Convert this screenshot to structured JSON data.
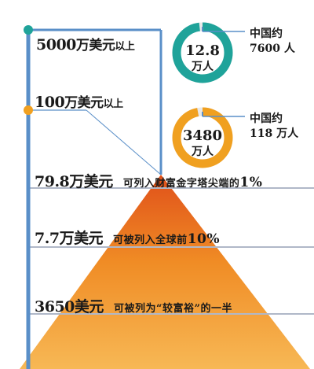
{
  "tiers": [
    {
      "value": "5000",
      "unit": "万美元",
      "suffix": "以上"
    },
    {
      "value": "100",
      "unit": "万美元",
      "suffix": "以上"
    },
    {
      "value": "79.8",
      "unit": "万美元",
      "note": "可列入财富金字塔尖端的",
      "note_value": "1%"
    },
    {
      "value": "7.7",
      "unit": "万美元",
      "note": "可被列入全球前",
      "note_value": "10%"
    },
    {
      "value": "3650",
      "unit": "美元",
      "note": "可被列为“较富裕”的一半",
      "note_value": ""
    }
  ],
  "rings": [
    {
      "center_line1": "12.8",
      "center_line2": "万人",
      "side_line1": "中国约",
      "side_line2": "7600 人",
      "color": "#1fa39a",
      "share": 0.98
    },
    {
      "center_line1": "3480",
      "center_line2": "万人",
      "side_line1": "中国约",
      "side_line2": "118 万人",
      "color": "#f0a020",
      "share": 0.97
    }
  ],
  "colors": {
    "axis": "#5a8fc8",
    "dot_top": "#1fa39a",
    "dot_second": "#f0a020",
    "pyramid_top": "#e0501a",
    "pyramid_mid": "#f08c25",
    "pyramid_bottom": "#f7b855",
    "band_line": "#b0b8c8"
  }
}
